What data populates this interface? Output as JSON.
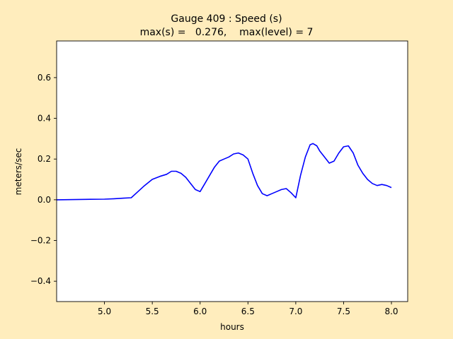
{
  "chart_data": {
    "type": "line",
    "title_line1": "Gauge 409 : Speed (s)",
    "title_line2": "max(s) =   0.276,    max(level) = 7",
    "xlabel": "hours",
    "ylabel": "meters/sec",
    "xlim": [
      4.5,
      8.17
    ],
    "ylim": [
      -0.5,
      0.78
    ],
    "xticks": [
      5.0,
      5.5,
      6.0,
      6.5,
      7.0,
      7.5,
      8.0
    ],
    "xtick_labels": [
      "5.0",
      "5.5",
      "6.0",
      "6.5",
      "7.0",
      "7.5",
      "8.0"
    ],
    "yticks": [
      -0.4,
      -0.2,
      0.0,
      0.2,
      0.4,
      0.6
    ],
    "ytick_labels": [
      "−0.4",
      "−0.2",
      "0.0",
      "0.2",
      "0.4",
      "0.6"
    ],
    "grid": false,
    "colors": {
      "background": "#ffedbd",
      "plot_area": "#ffffff",
      "line": "#0000ff"
    },
    "series": [
      {
        "color": "#0000ff",
        "x": [
          4.5,
          4.8,
          5.0,
          5.1,
          5.2,
          5.28,
          5.35,
          5.42,
          5.5,
          5.58,
          5.65,
          5.7,
          5.75,
          5.8,
          5.85,
          5.9,
          5.95,
          6.0,
          6.05,
          6.1,
          6.15,
          6.2,
          6.25,
          6.3,
          6.35,
          6.4,
          6.45,
          6.5,
          6.55,
          6.6,
          6.65,
          6.7,
          6.75,
          6.8,
          6.85,
          6.9,
          6.95,
          7.0,
          7.05,
          7.1,
          7.15,
          7.18,
          7.22,
          7.25,
          7.3,
          7.35,
          7.4,
          7.45,
          7.5,
          7.55,
          7.6,
          7.65,
          7.7,
          7.75,
          7.8,
          7.85,
          7.9,
          7.95,
          8.0
        ],
        "y": [
          0.0,
          0.002,
          0.003,
          0.005,
          0.008,
          0.01,
          0.04,
          0.07,
          0.1,
          0.115,
          0.125,
          0.14,
          0.14,
          0.13,
          0.11,
          0.08,
          0.05,
          0.04,
          0.08,
          0.12,
          0.16,
          0.19,
          0.2,
          0.21,
          0.225,
          0.23,
          0.22,
          0.2,
          0.13,
          0.07,
          0.03,
          0.02,
          0.03,
          0.04,
          0.05,
          0.055,
          0.035,
          0.01,
          0.12,
          0.21,
          0.27,
          0.276,
          0.265,
          0.24,
          0.21,
          0.18,
          0.19,
          0.23,
          0.26,
          0.265,
          0.23,
          0.17,
          0.13,
          0.1,
          0.08,
          0.07,
          0.075,
          0.07,
          0.06
        ]
      }
    ]
  }
}
